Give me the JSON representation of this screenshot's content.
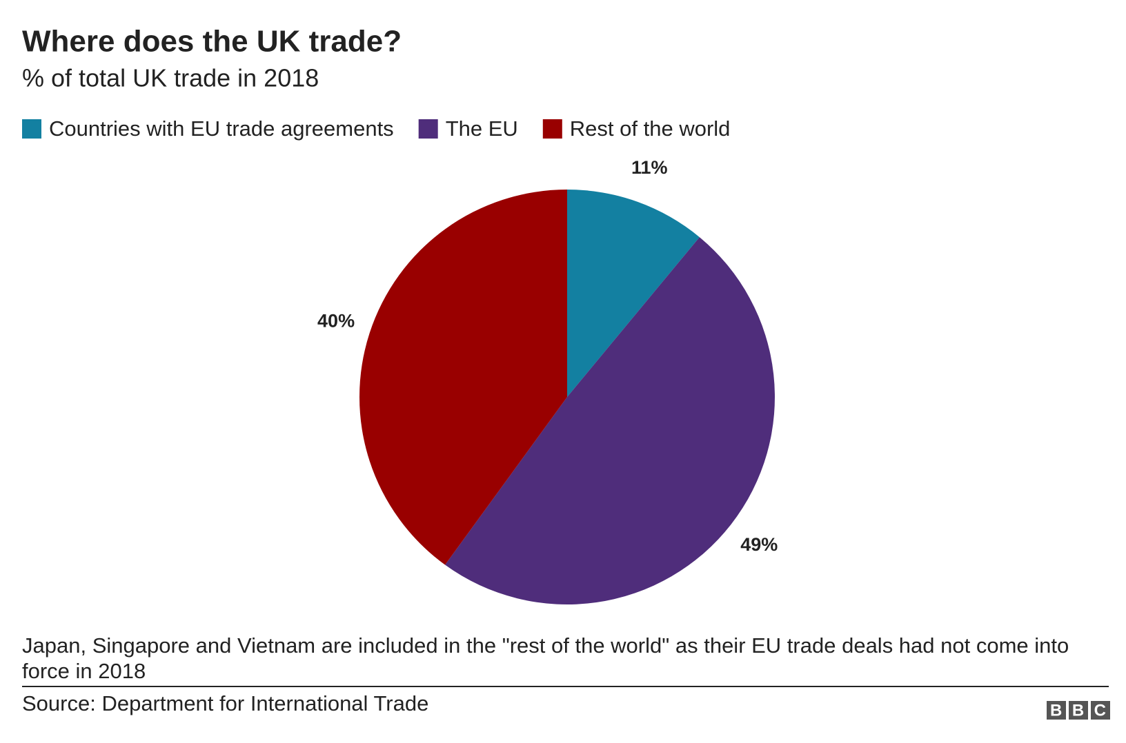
{
  "chart_data": {
    "type": "pie",
    "title": "Where does the UK trade?",
    "subtitle": "% of total UK trade in 2018",
    "categories": [
      "Countries with EU trade agreements",
      "The EU",
      "Rest of the world"
    ],
    "values": [
      11,
      49,
      40
    ],
    "value_labels": [
      "11%",
      "49%",
      "40%"
    ],
    "colors": [
      "#1380a1",
      "#4f2d7b",
      "#990000"
    ],
    "note": "Japan, Singapore and Vietnam are included in the \"rest of the world\" as their EU trade deals had not come into force in 2018",
    "source": "Source: Department for International Trade",
    "logo": "BBC"
  }
}
